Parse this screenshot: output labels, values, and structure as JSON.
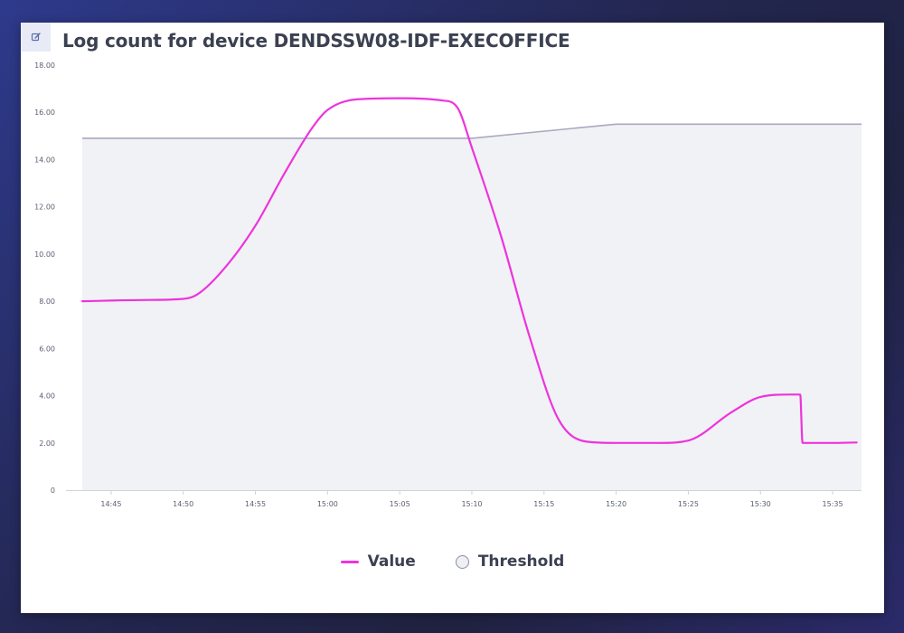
{
  "panel": {
    "title": "Log count for device DENDSSW08-IDF-EXECOFFICE",
    "edit_icon": "edit-icon"
  },
  "colors": {
    "value_line": "#ee33dd",
    "threshold_line": "#aaa8c0",
    "threshold_fill": "#f1f2f5",
    "axis": "#d0d3da"
  },
  "chart_data": {
    "type": "line",
    "title": "Log count for device DENDSSW08-IDF-EXECOFFICE",
    "xlabel": "",
    "ylabel": "",
    "ylim": [
      0,
      18
    ],
    "xlim": [
      "14:42:00",
      "15:37:00"
    ],
    "y_ticks": [
      "0",
      "2.00",
      "4.00",
      "6.00",
      "8.00",
      "10.00",
      "12.00",
      "14.00",
      "16.00",
      "18.00"
    ],
    "x_ticks": [
      "14:45",
      "14:50",
      "14:55",
      "15:00",
      "15:05",
      "15:10",
      "15:15",
      "15:20",
      "15:25",
      "15:30",
      "15:35"
    ],
    "grid": false,
    "legend_position": "bottom-center",
    "series": [
      {
        "name": "Value",
        "x": [
          "14:43:00",
          "14:47:00",
          "14:50:00",
          "14:51:00",
          "14:53:00",
          "14:55:00",
          "14:57:00",
          "14:59:00",
          "15:00:00",
          "15:02:00",
          "15:05:00",
          "15:08:00",
          "15:09:00",
          "15:10:00",
          "15:12:00",
          "15:14:00",
          "15:16:00",
          "15:18:00",
          "15:20:00",
          "15:23:00",
          "15:25:00",
          "15:28:00",
          "15:30:00",
          "15:32:00",
          "15:32:45",
          "15:32:55",
          "15:35:00",
          "15:36:40"
        ],
        "values": [
          8.0,
          8.05,
          8.1,
          8.3,
          9.5,
          11.2,
          13.4,
          15.4,
          16.1,
          16.55,
          16.6,
          16.5,
          16.2,
          14.5,
          10.8,
          6.5,
          3.0,
          2.05,
          2.0,
          2.0,
          2.1,
          3.3,
          3.95,
          4.05,
          4.05,
          2.0,
          2.0,
          2.02
        ]
      },
      {
        "name": "Threshold",
        "x": [
          "14:43:00",
          "15:10:00",
          "15:20:00",
          "15:37:00"
        ],
        "values": [
          14.9,
          14.9,
          15.5,
          15.5
        ]
      }
    ]
  },
  "legend": {
    "items": [
      {
        "label": "Value",
        "color": "#ee33dd",
        "shape": "line"
      },
      {
        "label": "Threshold",
        "color": "#eef0f4",
        "shape": "circle"
      }
    ]
  }
}
